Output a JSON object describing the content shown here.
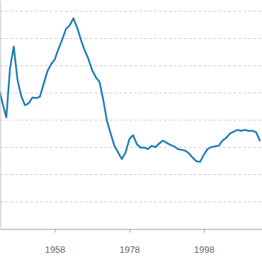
{
  "chart_data": {
    "type": "line",
    "x": [
      1943,
      1944,
      1945,
      1946,
      1947,
      1948,
      1949,
      1950,
      1951,
      1952,
      1953,
      1954,
      1955,
      1956,
      1957,
      1958,
      1959,
      1960,
      1961,
      1962,
      1963,
      1964,
      1965,
      1966,
      1967,
      1968,
      1969,
      1970,
      1971,
      1972,
      1973,
      1974,
      1975,
      1976,
      1977,
      1978,
      1979,
      1980,
      1981,
      1982,
      1983,
      1984,
      1985,
      1986,
      1987,
      1988,
      1989,
      1990,
      1991,
      1992,
      1993,
      1994,
      1995,
      1996,
      1997,
      1998,
      1999,
      2000,
      2001,
      2002,
      2003,
      2004,
      2005,
      2006,
      2007,
      2008,
      2009,
      2010,
      2011,
      2012,
      2013
    ],
    "values": [
      5.14,
      4.62,
      4.1,
      5.92,
      6.7,
      5.48,
      4.88,
      4.55,
      4.62,
      4.83,
      4.81,
      4.86,
      5.32,
      5.79,
      6.05,
      6.23,
      6.62,
      6.96,
      7.35,
      7.48,
      7.74,
      7.4,
      6.96,
      6.57,
      6.26,
      5.84,
      5.58,
      5.4,
      4.75,
      3.97,
      3.51,
      3.06,
      2.81,
      2.57,
      2.81,
      3.3,
      3.45,
      3.12,
      2.99,
      2.99,
      2.94,
      3.06,
      3.01,
      3.14,
      3.25,
      3.17,
      3.09,
      3.04,
      2.94,
      2.91,
      2.88,
      2.78,
      2.62,
      2.49,
      2.47,
      2.73,
      2.94,
      3.01,
      3.04,
      3.06,
      3.25,
      3.35,
      3.51,
      3.58,
      3.64,
      3.61,
      3.64,
      3.61,
      3.61,
      3.56,
      3.25
    ],
    "color": "#1b7db5",
    "xlim": [
      1943.4,
      2013.5
    ],
    "xticks": [
      1958,
      1978,
      1998
    ],
    "ylim": [
      0,
      8.4
    ],
    "yticks": [
      1,
      2,
      3,
      4,
      5,
      6,
      7,
      8
    ],
    "grid": true,
    "tick_labels": "x"
  }
}
